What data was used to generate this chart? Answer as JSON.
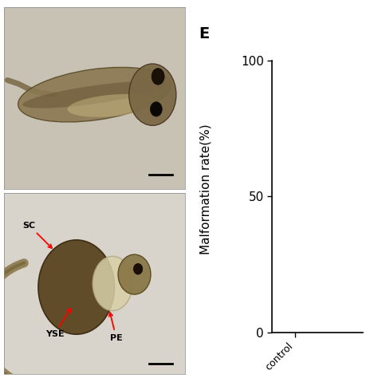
{
  "panel_E_label": "E",
  "ylabel": "Malformation rate(%)",
  "yticks": [
    0,
    50,
    100
  ],
  "ylim": [
    0,
    100
  ],
  "xlabel_partial": "control",
  "background_color": "#ffffff",
  "ylabel_fontsize": 11,
  "tick_fontsize": 11,
  "panel_label_fontsize": 14,
  "top_bg": "#c8c2b4",
  "bot_bg": "#d8d4cc",
  "image_border_color": "#888888",
  "arrow_color": "red",
  "scalebar_color": "black",
  "annotation_fontsize": 8
}
